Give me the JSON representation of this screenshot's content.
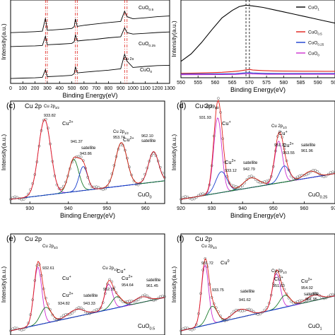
{
  "chart_data": [
    {
      "type": "line",
      "panel": "",
      "ylabel": "Intensity(a.u.)",
      "xlabel": "Binding Energy(eV)",
      "xlim": [
        0,
        1300
      ],
      "reverse_x": false,
      "x_ticks": [
        0,
        100,
        200,
        300,
        400,
        500,
        600,
        700,
        800,
        900,
        1000,
        1100,
        1200,
        1300
      ],
      "spectrum_labels": [
        "CuO0.5",
        "CuO0.25",
        "Cu 2s",
        "CuO0"
      ],
      "dashed_guides": [
        285,
        300,
        530,
        545,
        932,
        952
      ],
      "series": [
        {
          "name": "CuO0.5",
          "x": [
            0,
            100,
            200,
            260,
            285,
            300,
            400,
            500,
            520,
            530,
            545,
            600,
            700,
            800,
            900,
            932,
            952,
            1000,
            1100,
            1200,
            1300
          ],
          "y": [
            3.55,
            3.58,
            3.62,
            3.66,
            4.6,
            3.72,
            3.78,
            3.85,
            3.98,
            4.55,
            4.0,
            4.08,
            4.18,
            4.28,
            4.36,
            5.1,
            4.7,
            4.55,
            4.62,
            4.7,
            4.75
          ]
        },
        {
          "name": "CuO0.25",
          "x": [
            0,
            100,
            200,
            260,
            285,
            300,
            400,
            500,
            520,
            530,
            545,
            600,
            700,
            800,
            900,
            932,
            952,
            1000,
            1100,
            1200,
            1300
          ],
          "y": [
            2.55,
            2.58,
            2.6,
            2.63,
            3.3,
            2.68,
            2.72,
            2.78,
            2.9,
            3.4,
            2.95,
            3.0,
            3.08,
            3.18,
            3.25,
            3.9,
            3.55,
            3.45,
            3.5,
            3.56,
            3.6
          ]
        },
        {
          "name": "CuO0",
          "x": [
            0,
            100,
            200,
            260,
            285,
            300,
            400,
            500,
            520,
            530,
            545,
            600,
            700,
            800,
            900,
            932,
            952,
            1000,
            1100,
            1200,
            1300
          ],
          "y": [
            0.25,
            0.28,
            0.3,
            0.33,
            0.9,
            0.38,
            0.42,
            0.48,
            0.6,
            1.1,
            0.65,
            0.7,
            0.78,
            0.85,
            0.95,
            2.0,
            1.5,
            1.05,
            1.12,
            1.18,
            1.2
          ]
        }
      ]
    },
    {
      "type": "line",
      "panel": "",
      "ylabel": "Intensity(a.u.)",
      "xlabel": "Binding Energy(eV)",
      "xlim": [
        550,
        595
      ],
      "reverse_x": false,
      "x_ticks": [
        550,
        555,
        560,
        565,
        570,
        575,
        580,
        585,
        590,
        595
      ],
      "dashed_guides": [
        569,
        570
      ],
      "series": [
        {
          "name": "CuO1",
          "color": "#000000",
          "x": [
            550,
            553,
            556,
            559,
            562,
            565,
            567,
            569,
            571,
            574,
            577,
            580,
            583,
            586,
            589,
            592,
            595
          ],
          "y": [
            20,
            30,
            45,
            62,
            78,
            88,
            93,
            95,
            94,
            92,
            89,
            86,
            83,
            80,
            77,
            74,
            71
          ]
        },
        {
          "name": "CuO0.5",
          "color": "#e0201a",
          "x": [
            550,
            553,
            556,
            559,
            562,
            565,
            567,
            569,
            570,
            571,
            574,
            577,
            580,
            583,
            586,
            589,
            592,
            595
          ],
          "y": [
            4.0,
            4.2,
            4.5,
            4.9,
            5.4,
            6.3,
            7.2,
            8.6,
            9.2,
            8.4,
            7.6,
            7.2,
            7.0,
            6.9,
            6.8,
            6.75,
            6.7,
            6.7
          ]
        },
        {
          "name": "CuO0.25",
          "color": "#1a3fcf",
          "x": [
            550,
            556,
            562,
            566,
            569,
            570,
            571,
            575,
            580,
            585,
            590,
            595
          ],
          "y": [
            3.0,
            3.1,
            3.3,
            3.6,
            4.6,
            4.9,
            4.4,
            3.9,
            3.8,
            3.8,
            3.8,
            3.8
          ]
        },
        {
          "name": "CuO0",
          "color": "#cc2fcf",
          "x": [
            550,
            556,
            562,
            566,
            569,
            570,
            571,
            575,
            580,
            585,
            590,
            595
          ],
          "y": [
            2.2,
            2.25,
            2.35,
            2.55,
            3.3,
            3.6,
            3.1,
            2.75,
            2.7,
            2.7,
            2.7,
            2.7
          ]
        }
      ],
      "legend": [
        "CuO1",
        "CuO0.5",
        "CuO0.25",
        "CuO0"
      ],
      "ylim": [
        0,
        100
      ]
    },
    {
      "type": "scatter",
      "panel": "(c)",
      "region": "Cu 2p",
      "sample": "CuO0",
      "ylabel": "Intensity(a.u.)",
      "xlabel": "Binding Energy(eV)",
      "xlim": [
        925,
        965
      ],
      "x_ticks": [
        930,
        940,
        950,
        960
      ],
      "baseline": [
        {
          "x": 925,
          "y": 0
        },
        {
          "x": 965,
          "y": 2.3
        }
      ],
      "components": [
        {
          "label": "933.82",
          "center": 933.82,
          "height": 9.4,
          "width": 1.6,
          "color": "#cc2fcf"
        },
        {
          "label": "941.37",
          "center": 941.37,
          "height": 4.0,
          "width": 1.3,
          "color": "#1a7a2a"
        },
        {
          "label": "943.86",
          "center": 943.86,
          "height": 3.0,
          "width": 1.1,
          "color": "#1a3fcf"
        },
        {
          "label": "953.74",
          "center": 953.74,
          "height": 5.4,
          "width": 1.5,
          "color": "#1a7a2a"
        },
        {
          "label": "962.10",
          "center": 962.1,
          "height": 3.8,
          "width": 1.3,
          "color": "#1a3fcf"
        }
      ],
      "annotations": [
        "Cu 2p3/2",
        "933.82",
        "Cu2+",
        "941.37",
        "satellite",
        "943.86",
        "Cu 2p1/2",
        "953.74",
        "Cu2+",
        "962.10",
        "satellite"
      ]
    },
    {
      "type": "scatter",
      "panel": "(d)",
      "region": "Cu 2p",
      "sample": "CuO0.25",
      "ylabel": "Intensity(a.u.)",
      "xlabel": "Binding Energy(eV)",
      "xlim": [
        920,
        970
      ],
      "x_ticks": [
        920,
        930,
        940,
        950,
        960,
        970
      ],
      "baseline": [
        {
          "x": 920,
          "y": 0
        },
        {
          "x": 970,
          "y": 3.2
        }
      ],
      "components": [
        {
          "label": "931.93",
          "center": 931.93,
          "height": 9.4,
          "width": 1.3,
          "color": "#cc2fcf"
        },
        {
          "label": "933.12",
          "center": 933.12,
          "height": 2.6,
          "width": 1.8,
          "color": "#1a3fcf"
        },
        {
          "label": "942.79",
          "center": 942.79,
          "height": 1.2,
          "width": 2.5,
          "color": "#1a7a2a"
        },
        {
          "label": "951.72",
          "center": 951.72,
          "height": 5.2,
          "width": 1.3,
          "color": "#cc2fcf"
        },
        {
          "label": "953.55",
          "center": 953.55,
          "height": 2.0,
          "width": 1.6,
          "color": "#1a3fcf"
        },
        {
          "label": "961.96",
          "center": 961.96,
          "height": 0.8,
          "width": 2.0,
          "color": "#1a7a2a"
        }
      ],
      "annotations": [
        "Cu 2p3/2",
        "931.93",
        "Cu+",
        "Cu2+",
        "933.12",
        "satellite",
        "942.79",
        "Cu 2p1/2",
        "Cu+",
        "951.72",
        "Cu2+",
        "953.55",
        "satellite",
        "961.96"
      ]
    },
    {
      "type": "scatter",
      "panel": "(e)",
      "region": "Cu 2p",
      "sample": "CuO0.5",
      "ylabel": "Intensity(a.u.)",
      "xlabel": "",
      "xlim": [
        925,
        968
      ],
      "x_ticks": [],
      "baseline": [
        {
          "x": 925,
          "y": 0
        },
        {
          "x": 968,
          "y": 4.2
        }
      ],
      "components": [
        {
          "label": "932.61",
          "center": 932.61,
          "height": 7.3,
          "width": 1.1,
          "color": "#cc2fcf"
        },
        {
          "label": "934.82",
          "center": 934.82,
          "height": 2.0,
          "width": 1.5,
          "color": "#1a7a2a"
        },
        {
          "label": "943.33",
          "center": 943.33,
          "height": 0.9,
          "width": 2.2,
          "color": "#1a3fcf"
        },
        {
          "label": "952.35",
          "center": 952.35,
          "height": 3.2,
          "width": 1.1,
          "color": "#cc2fcf"
        },
        {
          "label": "954.64",
          "center": 954.64,
          "height": 1.4,
          "width": 1.5,
          "color": "#1a7a2a"
        },
        {
          "label": "961.45",
          "center": 961.45,
          "height": 0.7,
          "width": 2.0,
          "color": "#1a3fcf"
        }
      ],
      "annotations": [
        "Cu 2p3/2",
        "932.61",
        "Cu+",
        "Cu2+",
        "934.82",
        "satellite",
        "943.33",
        "Cu 2p1/2",
        "952.35",
        "Cu+",
        "Cu2+",
        "954.64",
        "satellite",
        "961.45"
      ]
    },
    {
      "type": "scatter",
      "panel": "(f)",
      "region": "Cu 2p",
      "sample": "CuO1",
      "ylabel": "Intensity(a.u.)",
      "xlabel": "",
      "xlim": [
        925,
        968
      ],
      "x_ticks": [],
      "baseline": [
        {
          "x": 925,
          "y": 0
        },
        {
          "x": 968,
          "y": 4.4
        }
      ],
      "components": [
        {
          "label": "931.72",
          "center": 931.72,
          "height": 7.6,
          "width": 1.0,
          "color": "#cc2fcf"
        },
        {
          "label": "933.75",
          "center": 933.75,
          "height": 2.2,
          "width": 1.4,
          "color": "#1a7a2a"
        },
        {
          "label": "941.62",
          "center": 941.62,
          "height": 1.0,
          "width": 2.2,
          "color": "#1a3fcf"
        },
        {
          "label": "951.63",
          "center": 951.63,
          "height": 4.5,
          "width": 1.1,
          "color": "#cc2fcf"
        },
        {
          "label": "954.02",
          "center": 954.02,
          "height": 1.5,
          "width": 1.5,
          "color": "#1a7a2a"
        },
        {
          "label": "961.95",
          "center": 961.95,
          "height": 0.7,
          "width": 2.0,
          "color": "#1a3fcf"
        }
      ],
      "annotations": [
        "Cu 2p3/2",
        "931.72",
        "Cu0",
        "933.75",
        "satellite",
        "941.62",
        "Cu 2p1/2",
        "Cu+",
        "951.63",
        "Cu2+",
        "954.02",
        "satellite",
        "961.95"
      ]
    }
  ]
}
